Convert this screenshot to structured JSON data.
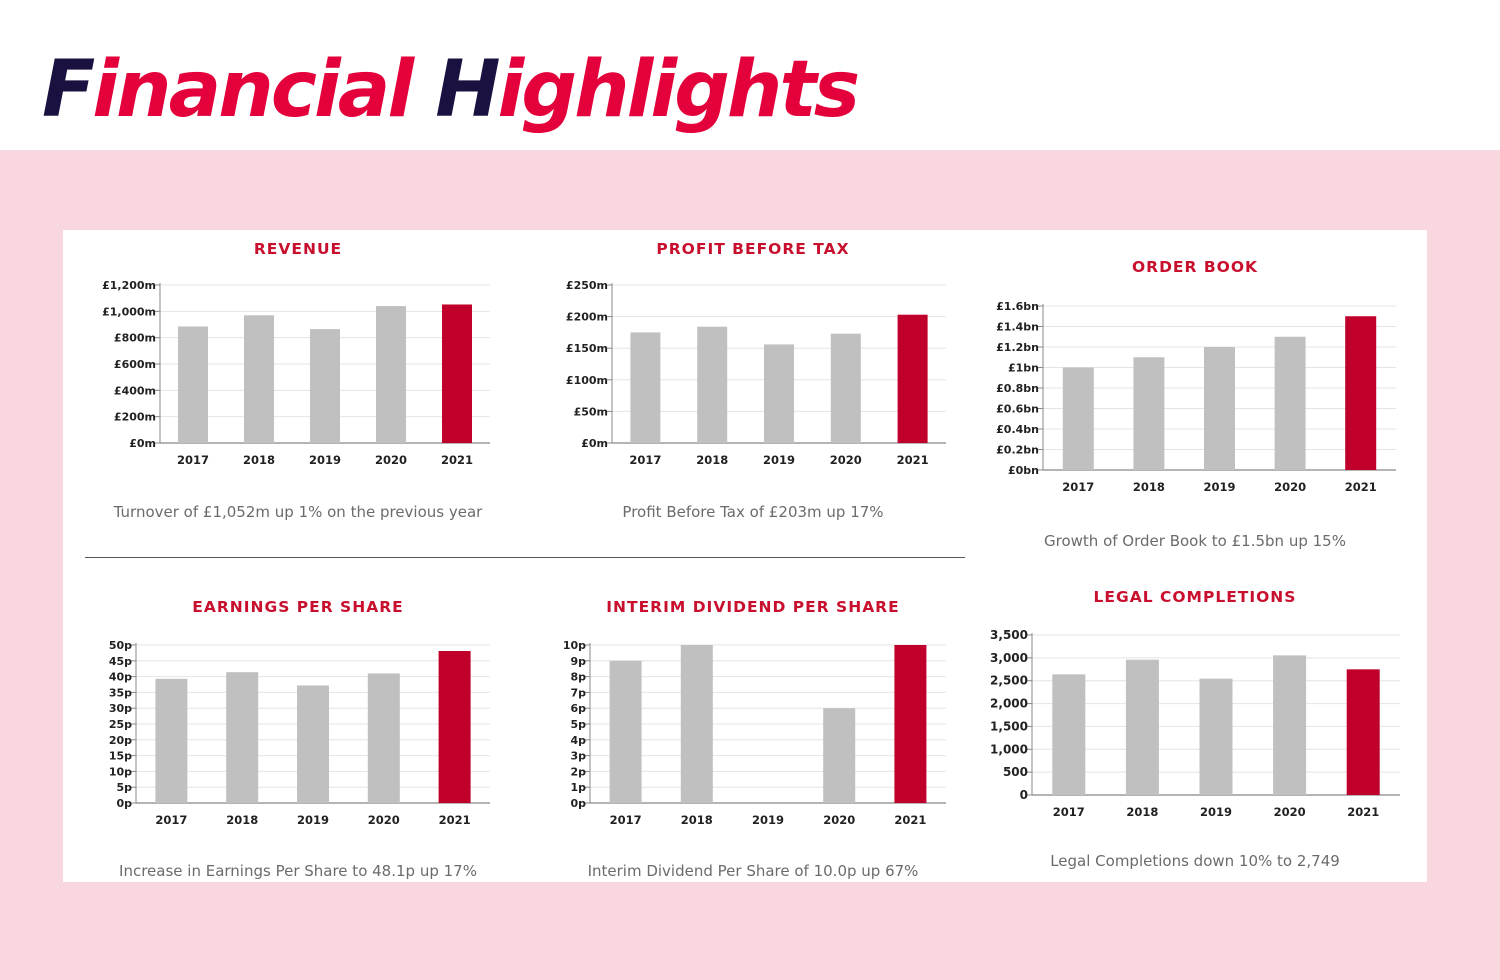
{
  "header": {
    "title_parts": [
      "F",
      "inancial ",
      "H",
      "ighlights"
    ]
  },
  "colors": {
    "title_dark": "#1a1140",
    "title_accent": "#e4003a",
    "band": "#f8d7de",
    "bar_grey": "#c0c0c0",
    "bar_highlight": "#c0002a",
    "chart_title": "#c8102e"
  },
  "chart_data": [
    {
      "id": "revenue",
      "type": "bar",
      "title": "REVENUE",
      "categories": [
        "2017",
        "2018",
        "2019",
        "2020",
        "2021"
      ],
      "values": [
        885,
        970,
        865,
        1040,
        1052
      ],
      "highlight_index": 4,
      "ylim": [
        0,
        1200
      ],
      "yticks": [
        0,
        200,
        400,
        600,
        800,
        1000,
        1200
      ],
      "ytick_labels": [
        "£0m",
        "£200m",
        "£400m",
        "£600m",
        "£800m",
        "£1,000m",
        "£1,200m"
      ],
      "caption": "Turnover of £1,052m up 1% on the previous year",
      "grid": true
    },
    {
      "id": "profit-before-tax",
      "type": "bar",
      "title": "PROFIT BEFORE TAX",
      "categories": [
        "2017",
        "2018",
        "2019",
        "2020",
        "2021"
      ],
      "values": [
        175,
        184,
        156,
        173,
        203
      ],
      "highlight_index": 4,
      "ylim": [
        0,
        250
      ],
      "yticks": [
        0,
        50,
        100,
        150,
        200,
        250
      ],
      "ytick_labels": [
        "£0m",
        "£50m",
        "£100m",
        "£150m",
        "£200m",
        "£250m"
      ],
      "caption": "Profit Before Tax of £203m up 17%",
      "grid": true
    },
    {
      "id": "order-book",
      "type": "bar",
      "title": "ORDER BOOK",
      "categories": [
        "2017",
        "2018",
        "2019",
        "2020",
        "2021"
      ],
      "values": [
        1.0,
        1.1,
        1.2,
        1.3,
        1.5
      ],
      "highlight_index": 4,
      "ylim": [
        0,
        1.6
      ],
      "yticks": [
        0,
        0.2,
        0.4,
        0.6,
        0.8,
        1.0,
        1.2,
        1.4,
        1.6
      ],
      "ytick_labels": [
        "£0bn",
        "£0.2bn",
        "£0.4bn",
        "£0.6bn",
        "£0.8bn",
        "£1bn",
        "£1.2bn",
        "£1.4bn",
        "£1.6bn"
      ],
      "caption": "Growth of Order Book to £1.5bn up 15%",
      "grid": true
    },
    {
      "id": "earnings-per-share",
      "type": "bar",
      "title": "EARNINGS PER SHARE",
      "categories": [
        "2017",
        "2018",
        "2019",
        "2020",
        "2021"
      ],
      "values": [
        39.3,
        41.4,
        37.2,
        41.0,
        48.1
      ],
      "highlight_index": 4,
      "ylim": [
        0,
        50
      ],
      "yticks": [
        0,
        5,
        10,
        15,
        20,
        25,
        30,
        35,
        40,
        45,
        50
      ],
      "ytick_labels": [
        "0p",
        "5p",
        "10p",
        "15p",
        "20p",
        "25p",
        "30p",
        "35p",
        "40p",
        "45p",
        "50p"
      ],
      "caption": "Increase in Earnings Per Share to 48.1p up 17%",
      "grid": true
    },
    {
      "id": "interim-dividend-per-share",
      "type": "bar",
      "title": "INTERIM DIVIDEND PER SHARE",
      "categories": [
        "2017",
        "2018",
        "2019",
        "2020",
        "2021"
      ],
      "values": [
        9.0,
        10.0,
        0,
        6.0,
        10.0
      ],
      "highlight_index": 4,
      "ylim": [
        0,
        10
      ],
      "yticks": [
        0,
        1,
        2,
        3,
        4,
        5,
        6,
        7,
        8,
        9,
        10
      ],
      "ytick_labels": [
        "0p",
        "1p",
        "2p",
        "3p",
        "4p",
        "5p",
        "6p",
        "7p",
        "8p",
        "9p",
        "10p"
      ],
      "caption": "Interim Dividend Per Share of 10.0p up 67%",
      "grid": true
    },
    {
      "id": "legal-completions",
      "type": "bar",
      "title": "LEGAL COMPLETIONS",
      "categories": [
        "2017",
        "2018",
        "2019",
        "2020",
        "2021"
      ],
      "values": [
        2640,
        2960,
        2545,
        3055,
        2749
      ],
      "highlight_index": 4,
      "ylim": [
        0,
        3500
      ],
      "yticks": [
        0,
        500,
        1000,
        1500,
        2000,
        2500,
        3000,
        3500
      ],
      "ytick_labels": [
        "0",
        "500",
        "1,000",
        "1,500",
        "2,000",
        "2,500",
        "3,000",
        "3,500"
      ],
      "caption": "Legal Completions down 10% to 2,749",
      "grid": true
    }
  ]
}
